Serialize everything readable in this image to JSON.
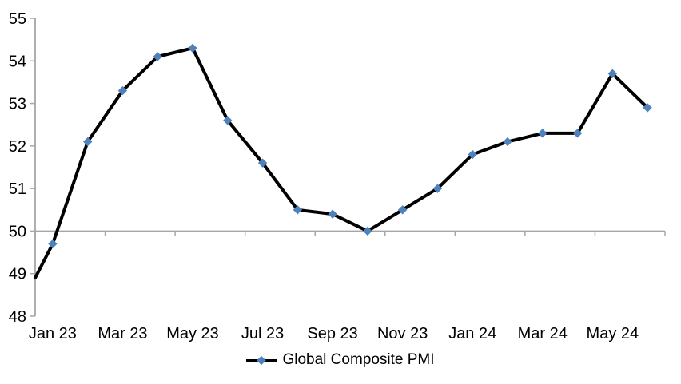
{
  "colors": {
    "background": "#FFFFFF",
    "series_line": "#000000",
    "marker_fill": "#4F81BD",
    "axis_line": "#A6A6A6",
    "label_text": "#000000"
  },
  "chart_data": {
    "type": "line",
    "title": "",
    "categories": [
      "Jan 23",
      "Feb 23",
      "Mar 23",
      "Apr 23",
      "May 23",
      "Jun 23",
      "Jul 23",
      "Aug 23",
      "Sep 23",
      "Oct 23",
      "Nov 23",
      "Dec 23",
      "Jan 24",
      "Feb 24",
      "Mar 24",
      "Apr 24",
      "May 24",
      "Jun 24"
    ],
    "series": [
      {
        "name": "Global Composite PMI",
        "marker": "diamond",
        "values": [
          49.7,
          52.1,
          53.3,
          54.1,
          54.3,
          52.6,
          51.6,
          50.5,
          50.4,
          50.0,
          50.5,
          51.0,
          51.8,
          52.1,
          52.3,
          52.3,
          53.7,
          52.9
        ]
      }
    ],
    "left_edge_entry_value": 48.9,
    "x_tick_labels": [
      "Jan 23",
      "Mar 23",
      "May 23",
      "Jul 23",
      "Sep 23",
      "Nov 23",
      "Jan 24",
      "Mar 24",
      "May 24"
    ],
    "y_ticks": [
      48,
      49,
      50,
      51,
      52,
      53,
      54,
      55
    ],
    "ylim": [
      48,
      55
    ],
    "x_axis_crosses_at": 50,
    "gridlines": "off",
    "legend_position": "bottom-center"
  }
}
